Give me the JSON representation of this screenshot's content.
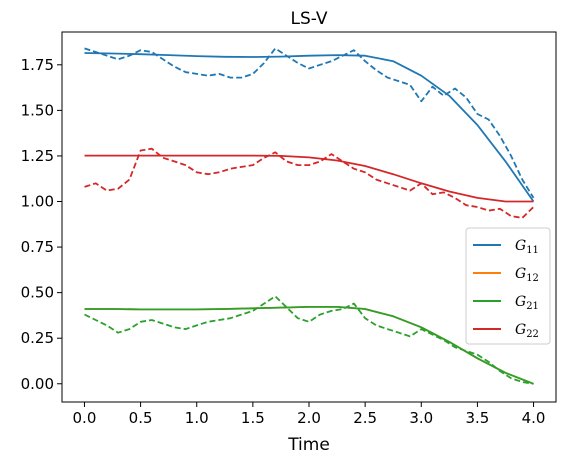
{
  "chart_data": {
    "type": "line",
    "title": "LS-V",
    "xlabel": "Time",
    "ylabel": "",
    "xlim": [
      -0.2,
      4.2
    ],
    "ylim": [
      -0.1,
      1.93
    ],
    "xticks": [
      "0.0",
      "0.5",
      "1.0",
      "1.5",
      "2.0",
      "2.5",
      "3.0",
      "3.5",
      "4.0"
    ],
    "yticks": [
      "0.00",
      "0.25",
      "0.50",
      "0.75",
      "1.00",
      "1.25",
      "1.50",
      "1.75"
    ],
    "grid": false,
    "legend_position": "center-right",
    "legend": [
      {
        "base": "G",
        "sub": "11",
        "color": "#1f77b4"
      },
      {
        "base": "G",
        "sub": "12",
        "color": "#ff7f0e"
      },
      {
        "base": "G",
        "sub": "21",
        "color": "#2ca02c"
      },
      {
        "base": "G",
        "sub": "22",
        "color": "#d62728"
      }
    ],
    "series": [
      {
        "color": "#1f77b4",
        "style": "solid",
        "x": [
          0.0,
          0.25,
          0.5,
          0.75,
          1.0,
          1.25,
          1.5,
          1.75,
          2.0,
          2.25,
          2.5,
          2.75,
          3.0,
          3.25,
          3.5,
          3.75,
          4.0
        ],
        "y": [
          1.815,
          1.812,
          1.808,
          1.803,
          1.798,
          1.794,
          1.793,
          1.795,
          1.8,
          1.803,
          1.8,
          1.77,
          1.69,
          1.58,
          1.42,
          1.22,
          1.0
        ]
      },
      {
        "color": "#1f77b4",
        "style": "dashed",
        "x": [
          0.0,
          0.1,
          0.2,
          0.3,
          0.4,
          0.5,
          0.6,
          0.7,
          0.8,
          0.9,
          1.0,
          1.1,
          1.2,
          1.3,
          1.4,
          1.5,
          1.6,
          1.7,
          1.8,
          1.9,
          2.0,
          2.1,
          2.2,
          2.3,
          2.4,
          2.5,
          2.6,
          2.7,
          2.8,
          2.9,
          3.0,
          3.1,
          3.2,
          3.3,
          3.4,
          3.5,
          3.6,
          3.7,
          3.8,
          3.9,
          4.0
        ],
        "y": [
          1.84,
          1.82,
          1.8,
          1.78,
          1.8,
          1.83,
          1.82,
          1.78,
          1.74,
          1.71,
          1.7,
          1.69,
          1.7,
          1.68,
          1.68,
          1.7,
          1.76,
          1.84,
          1.8,
          1.76,
          1.73,
          1.75,
          1.77,
          1.8,
          1.83,
          1.77,
          1.72,
          1.68,
          1.66,
          1.64,
          1.55,
          1.63,
          1.58,
          1.62,
          1.57,
          1.48,
          1.45,
          1.36,
          1.25,
          1.12,
          1.02
        ]
      },
      {
        "color": "#ff7f0e",
        "style": "solid",
        "x": [
          0.0,
          0.25,
          0.5,
          0.75,
          1.0,
          1.25,
          1.5,
          1.75,
          2.0,
          2.25,
          2.5,
          2.75,
          3.0,
          3.25,
          3.5,
          3.75,
          4.0
        ],
        "y": [
          0.41,
          0.41,
          0.408,
          0.408,
          0.408,
          0.41,
          0.414,
          0.418,
          0.422,
          0.422,
          0.41,
          0.37,
          0.31,
          0.23,
          0.14,
          0.06,
          0.0
        ]
      },
      {
        "color": "#2ca02c",
        "style": "solid",
        "x": [
          0.0,
          0.25,
          0.5,
          0.75,
          1.0,
          1.25,
          1.5,
          1.75,
          2.0,
          2.25,
          2.5,
          2.75,
          3.0,
          3.25,
          3.5,
          3.75,
          4.0
        ],
        "y": [
          0.41,
          0.41,
          0.408,
          0.408,
          0.408,
          0.41,
          0.414,
          0.418,
          0.422,
          0.422,
          0.41,
          0.37,
          0.31,
          0.23,
          0.14,
          0.06,
          0.0
        ]
      },
      {
        "color": "#2ca02c",
        "style": "dashed",
        "x": [
          0.0,
          0.1,
          0.2,
          0.3,
          0.4,
          0.5,
          0.6,
          0.7,
          0.8,
          0.9,
          1.0,
          1.1,
          1.2,
          1.3,
          1.4,
          1.5,
          1.6,
          1.7,
          1.8,
          1.9,
          2.0,
          2.1,
          2.2,
          2.3,
          2.4,
          2.5,
          2.6,
          2.7,
          2.8,
          2.9,
          3.0,
          3.1,
          3.2,
          3.3,
          3.4,
          3.5,
          3.6,
          3.7,
          3.8,
          3.9,
          4.0
        ],
        "y": [
          0.38,
          0.35,
          0.32,
          0.28,
          0.3,
          0.34,
          0.35,
          0.33,
          0.31,
          0.3,
          0.32,
          0.34,
          0.35,
          0.36,
          0.38,
          0.4,
          0.44,
          0.48,
          0.42,
          0.36,
          0.34,
          0.38,
          0.4,
          0.41,
          0.44,
          0.36,
          0.32,
          0.3,
          0.28,
          0.26,
          0.3,
          0.27,
          0.24,
          0.2,
          0.18,
          0.16,
          0.12,
          0.07,
          0.03,
          0.01,
          0.0
        ]
      },
      {
        "color": "#d62728",
        "style": "solid",
        "x": [
          0.0,
          0.25,
          0.5,
          0.75,
          1.0,
          1.25,
          1.5,
          1.75,
          2.0,
          2.25,
          2.5,
          2.75,
          3.0,
          3.25,
          3.5,
          3.75,
          4.0
        ],
        "y": [
          1.252,
          1.252,
          1.252,
          1.252,
          1.252,
          1.252,
          1.252,
          1.25,
          1.242,
          1.225,
          1.195,
          1.15,
          1.1,
          1.055,
          1.02,
          1.0,
          1.0
        ]
      },
      {
        "color": "#d62728",
        "style": "dashed",
        "x": [
          0.0,
          0.1,
          0.2,
          0.3,
          0.4,
          0.5,
          0.6,
          0.7,
          0.8,
          0.9,
          1.0,
          1.1,
          1.2,
          1.3,
          1.4,
          1.5,
          1.6,
          1.7,
          1.8,
          1.9,
          2.0,
          2.1,
          2.2,
          2.3,
          2.4,
          2.5,
          2.6,
          2.7,
          2.8,
          2.9,
          3.0,
          3.1,
          3.2,
          3.3,
          3.4,
          3.5,
          3.6,
          3.7,
          3.8,
          3.9,
          4.0
        ],
        "y": [
          1.08,
          1.1,
          1.06,
          1.07,
          1.12,
          1.28,
          1.29,
          1.24,
          1.22,
          1.2,
          1.16,
          1.15,
          1.16,
          1.18,
          1.19,
          1.2,
          1.24,
          1.27,
          1.22,
          1.2,
          1.2,
          1.22,
          1.26,
          1.22,
          1.18,
          1.16,
          1.12,
          1.1,
          1.08,
          1.06,
          1.1,
          1.04,
          1.05,
          1.02,
          0.98,
          0.97,
          0.95,
          0.96,
          0.92,
          0.91,
          0.97
        ]
      }
    ]
  }
}
